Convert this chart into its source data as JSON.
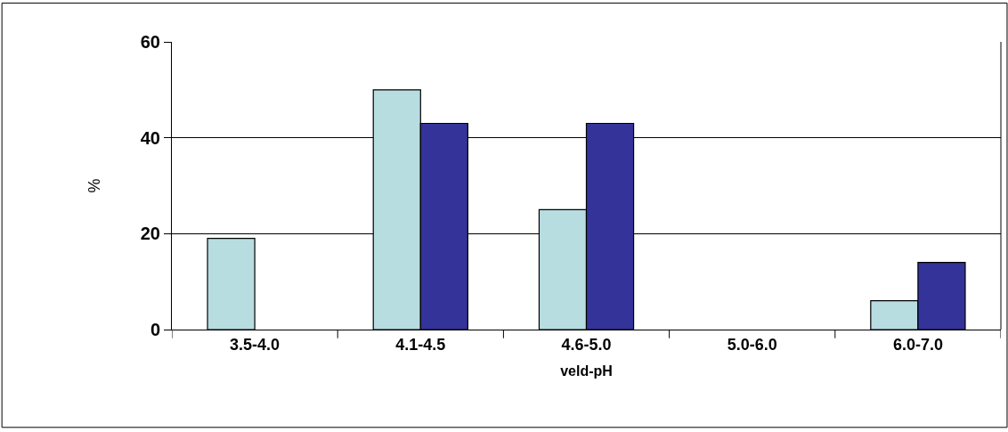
{
  "chart_data": {
    "type": "bar",
    "xlabel": "veld-pH",
    "ylabel": "%",
    "categories": [
      "3.5-4.0",
      "4.1-4.5",
      "4.6-5.0",
      "5.0-6.0",
      "6.0-7.0"
    ],
    "series": [
      {
        "color": "#b8dde1",
        "values": [
          19,
          50,
          25,
          null,
          6
        ]
      },
      {
        "color": "#333399",
        "values": [
          null,
          43,
          43,
          null,
          14
        ]
      }
    ],
    "ylim": [
      0,
      60
    ],
    "yticks": [
      0,
      20,
      40,
      60
    ],
    "grid": "y",
    "legend": false
  }
}
